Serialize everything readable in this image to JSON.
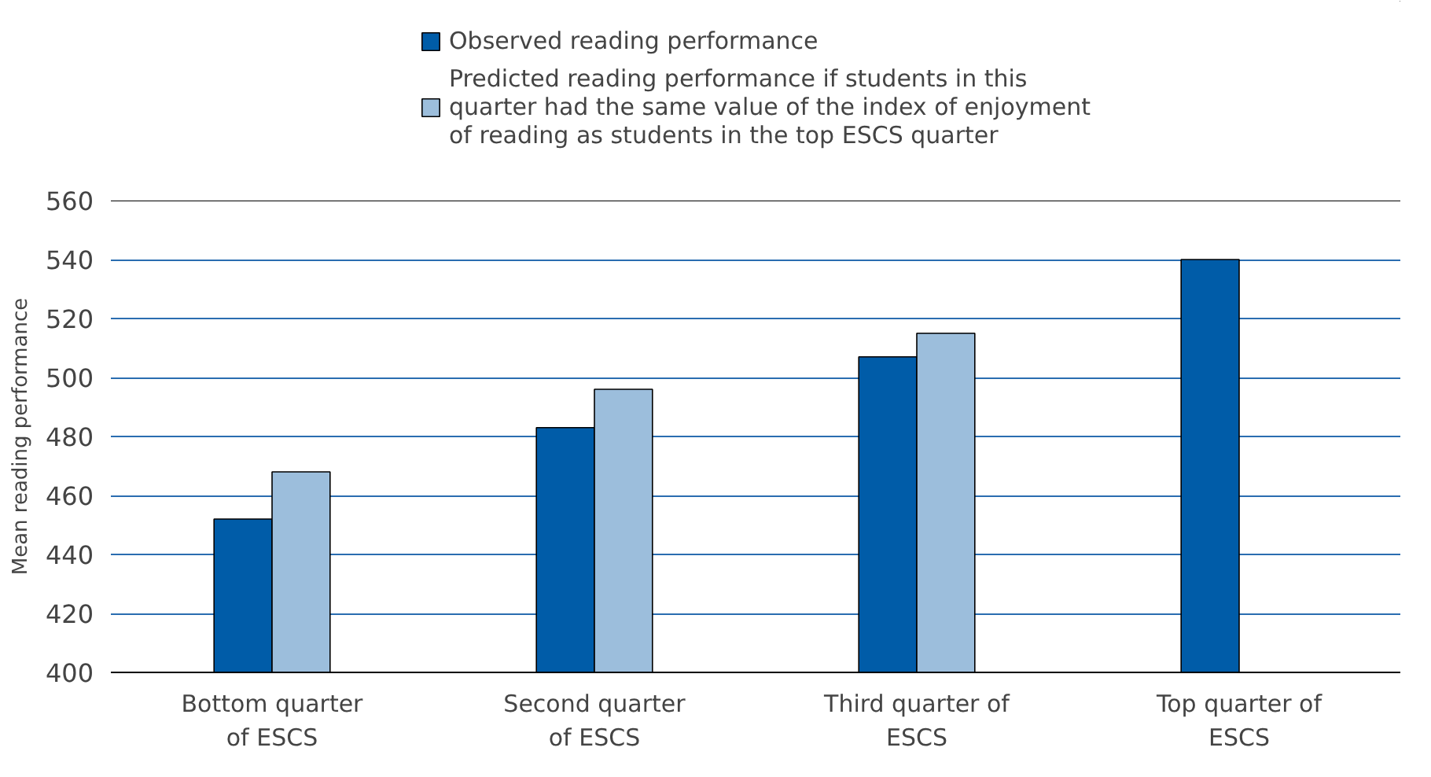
{
  "chart_data": {
    "type": "bar",
    "ylabel": "Mean reading performance",
    "categories": [
      "Bottom quarter of ESCS",
      "Second quarter of ESCS",
      "Third quarter of ESCS",
      "Top quarter of ESCS"
    ],
    "series": [
      {
        "name": "Observed reading performance",
        "color": "#005ca8",
        "values": [
          452,
          483,
          507,
          540
        ]
      },
      {
        "name": "Predicted reading performance if students in this quarter had the same value of the index of enjoyment of reading as students in the top ESCS quarter",
        "color": "#9cbedc",
        "values": [
          468,
          496,
          515,
          null
        ]
      }
    ],
    "ylim": [
      400,
      560
    ],
    "yticks": [
      400,
      420,
      440,
      460,
      480,
      500,
      520,
      540,
      560
    ],
    "grid": "y",
    "legend": "top"
  }
}
